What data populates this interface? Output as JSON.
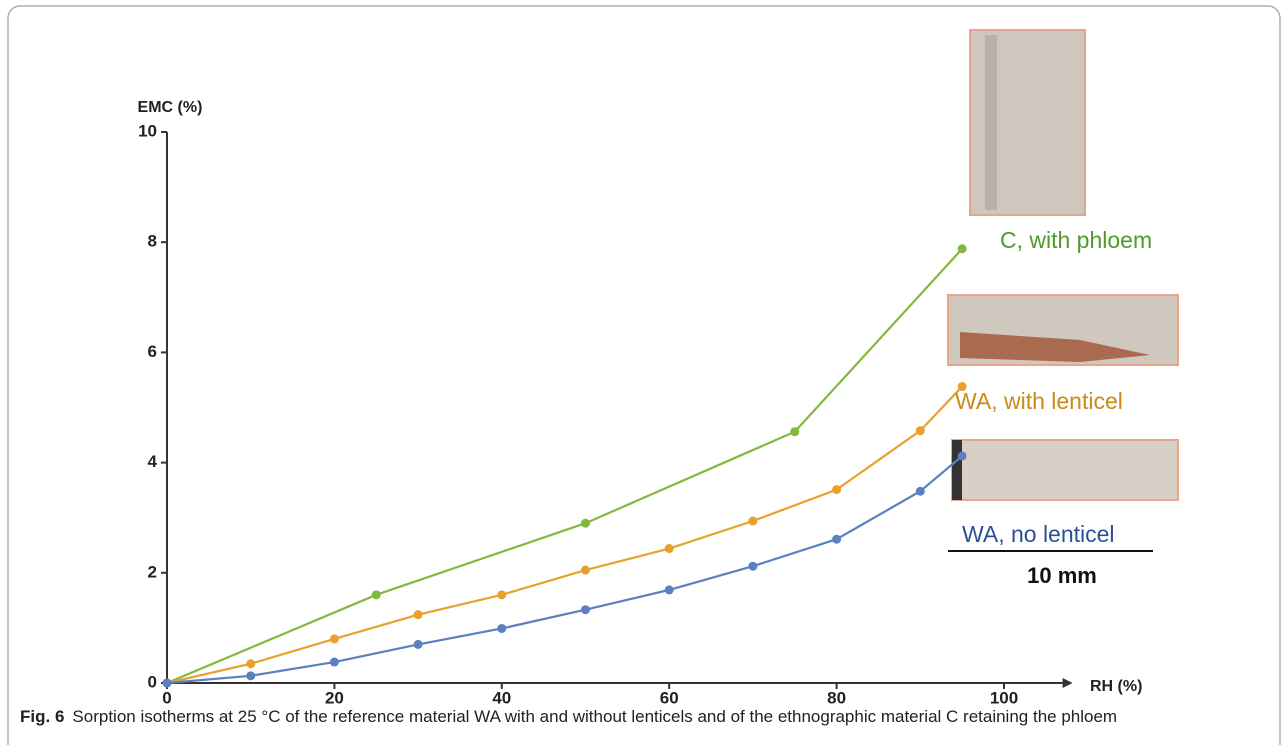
{
  "chart_data": {
    "type": "line",
    "ylabel": "EMC (%)",
    "xlabel": "RH (%)",
    "xlim": [
      0,
      107
    ],
    "ylim": [
      0,
      10
    ],
    "xticks": [
      0,
      20,
      40,
      60,
      80,
      100
    ],
    "yticks": [
      0,
      2,
      4,
      6,
      8,
      10
    ],
    "series": [
      {
        "name": "C, with phloem",
        "color": "#82b83c",
        "label_color": "#4f9a28",
        "x": [
          0,
          25,
          50,
          75,
          95
        ],
        "values": [
          0,
          1.6,
          2.9,
          4.56,
          7.88
        ]
      },
      {
        "name": "WA, with lenticel",
        "color": "#e8a12c",
        "label_color": "#c98a18",
        "x": [
          0,
          10,
          20,
          30,
          40,
          50,
          60,
          70,
          80,
          90,
          95
        ],
        "values": [
          0,
          0.35,
          0.8,
          1.24,
          1.6,
          2.05,
          2.44,
          2.94,
          3.51,
          4.58,
          5.38
        ]
      },
      {
        "name": "WA, no lenticel",
        "color": "#5b80c0",
        "label_color": "#2c4f9c",
        "x": [
          0,
          10,
          20,
          30,
          40,
          50,
          60,
          70,
          80,
          90,
          95
        ],
        "values": [
          0,
          0.13,
          0.38,
          0.7,
          0.99,
          1.33,
          1.69,
          2.12,
          2.61,
          3.48,
          4.12
        ]
      }
    ],
    "scale_label": "10 mm"
  },
  "caption": {
    "label": "Fig. 6",
    "text": "Sorption isotherms at 25 °C of the reference material WA with and without lenticels and of the ethnographic material C retaining the phloem"
  }
}
